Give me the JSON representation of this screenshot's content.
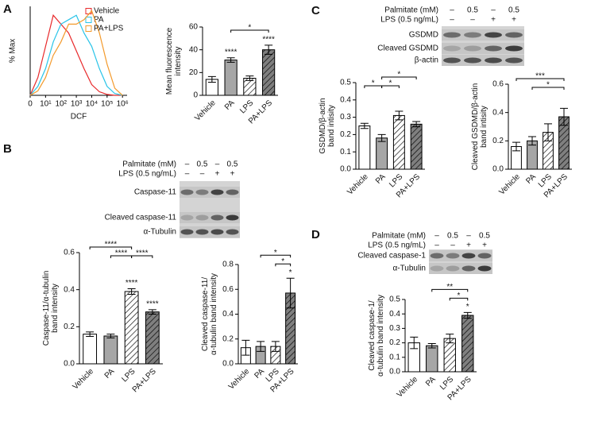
{
  "panel_labels": [
    "A",
    "B",
    "C",
    "D"
  ],
  "blots": [
    {
      "treatment_rows": [
        {
          "label": "Palmitate (mM)",
          "lanes": [
            "–",
            "0.5",
            "–",
            "0.5"
          ]
        },
        {
          "label": "LPS (0.5 ng/mL)",
          "lanes": [
            "–",
            "–",
            "+",
            "+"
          ]
        }
      ],
      "bands": [
        "Caspase-11",
        "Cleaved caspase-11",
        "α-Tubulin"
      ]
    },
    {
      "treatment_rows": [
        {
          "label": "Palmitate (mM)",
          "lanes": [
            "–",
            "0.5",
            "–",
            "0.5"
          ]
        },
        {
          "label": "LPS (0.5 ng/mL)",
          "lanes": [
            "–",
            "–",
            "+",
            "+"
          ]
        }
      ],
      "bands": [
        "GSDMD",
        "Cleaved GSDMD",
        "β-actin"
      ]
    },
    {
      "treatment_rows": [
        {
          "label": "Palmitate (mM)",
          "lanes": [
            "–",
            "0.5",
            "–",
            "0.5"
          ]
        },
        {
          "label": "LPS (0.5 ng/mL)",
          "lanes": [
            "–",
            "–",
            "+",
            "+"
          ]
        }
      ],
      "bands": [
        "Cleaved caspase-1",
        "α-Tubulin"
      ]
    }
  ],
  "chart_data": [
    {
      "type": "line",
      "x_label": "DCF",
      "y_label": [
        "% Max"
      ],
      "x": [
        0,
        0.5,
        1,
        1.5,
        2,
        2.5,
        3,
        3.5,
        4,
        4.5,
        5,
        5.5,
        6
      ],
      "xlim": [
        0,
        6.3
      ],
      "ylim": [
        0,
        100
      ],
      "xticks": [
        {
          "value": 0,
          "label": "0"
        },
        {
          "value": 1,
          "label": "10¹"
        },
        {
          "value": 2,
          "label": "10²"
        },
        {
          "value": 3,
          "label": "10³"
        },
        {
          "value": 4,
          "label": "10⁴"
        },
        {
          "value": 5,
          "label": "10⁵"
        },
        {
          "value": 6,
          "label": "10⁶"
        }
      ],
      "series": [
        {
          "name": "Vehicle",
          "color": "#e8292b",
          "values": [
            0,
            20,
            55,
            90,
            80,
            70,
            50,
            30,
            12,
            4,
            1,
            0,
            0
          ]
        },
        {
          "name": "PA",
          "color": "#29c4e8",
          "values": [
            0,
            10,
            30,
            60,
            80,
            85,
            90,
            70,
            55,
            30,
            10,
            2,
            0
          ]
        },
        {
          "name": "PA+LPS",
          "color": "#f39a2c",
          "values": [
            0,
            5,
            20,
            45,
            60,
            80,
            80,
            85,
            95,
            70,
            35,
            8,
            0
          ]
        }
      ]
    },
    {
      "type": "bar",
      "y_label": [
        "Mean fluorescence",
        "intensity"
      ],
      "categories": [
        "Vehicle",
        "PA",
        "LPS",
        "PA+LPS"
      ],
      "values": [
        14,
        31,
        15,
        40
      ],
      "errors": [
        2.5,
        2,
        2,
        4
      ],
      "colors": [
        "#ffffff",
        "#a6a6a6",
        "#ffffff",
        "#7f7f7f"
      ],
      "hatch": [
        false,
        false,
        true,
        true
      ],
      "ylim": [
        0,
        60
      ],
      "yticks": [
        0,
        20,
        40,
        60
      ],
      "stars": [
        {
          "at": 1,
          "text": "****"
        },
        {
          "at": 3,
          "text": "****"
        }
      ],
      "brackets": [
        {
          "from": 1,
          "to": 3,
          "text": "*"
        }
      ]
    },
    {
      "type": "bar",
      "y_label": [
        "Caspase-11/α-tubulin",
        "band intensity"
      ],
      "categories": [
        "Vehicle",
        "PA",
        "LPS",
        "PA+LPS"
      ],
      "values": [
        0.16,
        0.15,
        0.39,
        0.28
      ],
      "errors": [
        0.012,
        0.01,
        0.015,
        0.012
      ],
      "colors": [
        "#ffffff",
        "#a6a6a6",
        "#ffffff",
        "#7f7f7f"
      ],
      "hatch": [
        false,
        false,
        true,
        true
      ],
      "ylim": [
        0,
        0.6
      ],
      "yticks": [
        {
          "value": 0,
          "label": "0.0"
        },
        0.2,
        0.4,
        0.6
      ],
      "stars": [
        {
          "at": 2,
          "text": "****"
        },
        {
          "at": 3,
          "text": "****"
        }
      ],
      "brackets": [
        {
          "from": 1,
          "to": 2,
          "text": "****"
        },
        {
          "from": 2,
          "to": 3,
          "text": "****"
        },
        {
          "from": 0,
          "to": 2,
          "text": "****"
        }
      ]
    },
    {
      "type": "bar",
      "y_label": [
        "Cleaved caspase-11/",
        "α-tubulin band intensity"
      ],
      "categories": [
        "Vehicle",
        "PA",
        "LPS",
        "PA+LPS"
      ],
      "values": [
        0.13,
        0.14,
        0.14,
        0.57
      ],
      "errors": [
        0.06,
        0.04,
        0.04,
        0.12
      ],
      "colors": [
        "#ffffff",
        "#a6a6a6",
        "#ffffff",
        "#7f7f7f"
      ],
      "hatch": [
        false,
        false,
        true,
        true
      ],
      "ylim": [
        0,
        0.8
      ],
      "yticks": [
        {
          "value": 0,
          "label": "0.0"
        },
        0.2,
        0.4,
        0.6,
        0.8
      ],
      "stars": [
        {
          "at": 3,
          "text": "*"
        }
      ],
      "brackets": [
        {
          "from": 2,
          "to": 3,
          "text": "*"
        },
        {
          "from": 1,
          "to": 3,
          "text": "*"
        }
      ]
    },
    {
      "type": "bar",
      "y_label": [
        "GSDMD/β-actin",
        "band intisity"
      ],
      "categories": [
        "Vehicle",
        "PA",
        "LPS",
        "PA+LPS"
      ],
      "values": [
        0.25,
        0.18,
        0.31,
        0.26
      ],
      "errors": [
        0.015,
        0.02,
        0.025,
        0.015
      ],
      "colors": [
        "#ffffff",
        "#a6a6a6",
        "#ffffff",
        "#7f7f7f"
      ],
      "hatch": [
        false,
        false,
        true,
        true
      ],
      "ylim": [
        0,
        0.5
      ],
      "yticks": [
        {
          "value": 0,
          "label": "0.0"
        },
        0.1,
        0.2,
        0.3,
        0.4,
        0.5
      ],
      "stars": [],
      "brackets": [
        {
          "from": 0,
          "to": 1,
          "text": "*"
        },
        {
          "from": 1,
          "to": 2,
          "text": "*"
        },
        {
          "from": 1,
          "to": 3,
          "text": "*"
        }
      ]
    },
    {
      "type": "bar",
      "y_label": [
        "Cleaved GSDMD/β-actin",
        "band intisity"
      ],
      "categories": [
        "Vehicle",
        "PA",
        "LPS",
        "PA+LPS"
      ],
      "values": [
        0.16,
        0.2,
        0.26,
        0.37
      ],
      "errors": [
        0.03,
        0.03,
        0.06,
        0.06
      ],
      "colors": [
        "#ffffff",
        "#a6a6a6",
        "#ffffff",
        "#7f7f7f"
      ],
      "hatch": [
        false,
        false,
        true,
        true
      ],
      "ylim": [
        0,
        0.6
      ],
      "yticks": [
        {
          "value": 0,
          "label": "0.0"
        },
        0.2,
        0.4,
        0.6
      ],
      "stars": [],
      "brackets": [
        {
          "from": 1,
          "to": 3,
          "text": "*"
        },
        {
          "from": 0,
          "to": 3,
          "text": "***"
        }
      ]
    },
    {
      "type": "bar",
      "y_label": [
        "Cleaved caspase-1/",
        "α-tubulin band intensity"
      ],
      "categories": [
        "Vehicle",
        "PA",
        "LPS",
        "PA+LPS"
      ],
      "values": [
        0.2,
        0.18,
        0.23,
        0.39
      ],
      "errors": [
        0.04,
        0.015,
        0.03,
        0.02
      ],
      "colors": [
        "#ffffff",
        "#a6a6a6",
        "#ffffff",
        "#7f7f7f"
      ],
      "hatch": [
        false,
        false,
        true,
        true
      ],
      "ylim": [
        0,
        0.5
      ],
      "yticks": [
        {
          "value": 0,
          "label": "0.0"
        },
        0.1,
        0.2,
        0.3,
        0.4,
        0.5
      ],
      "stars": [
        {
          "at": 3,
          "text": "*"
        }
      ],
      "brackets": [
        {
          "from": 2,
          "to": 3,
          "text": "*"
        },
        {
          "from": 1,
          "to": 3,
          "text": "**"
        }
      ]
    }
  ]
}
